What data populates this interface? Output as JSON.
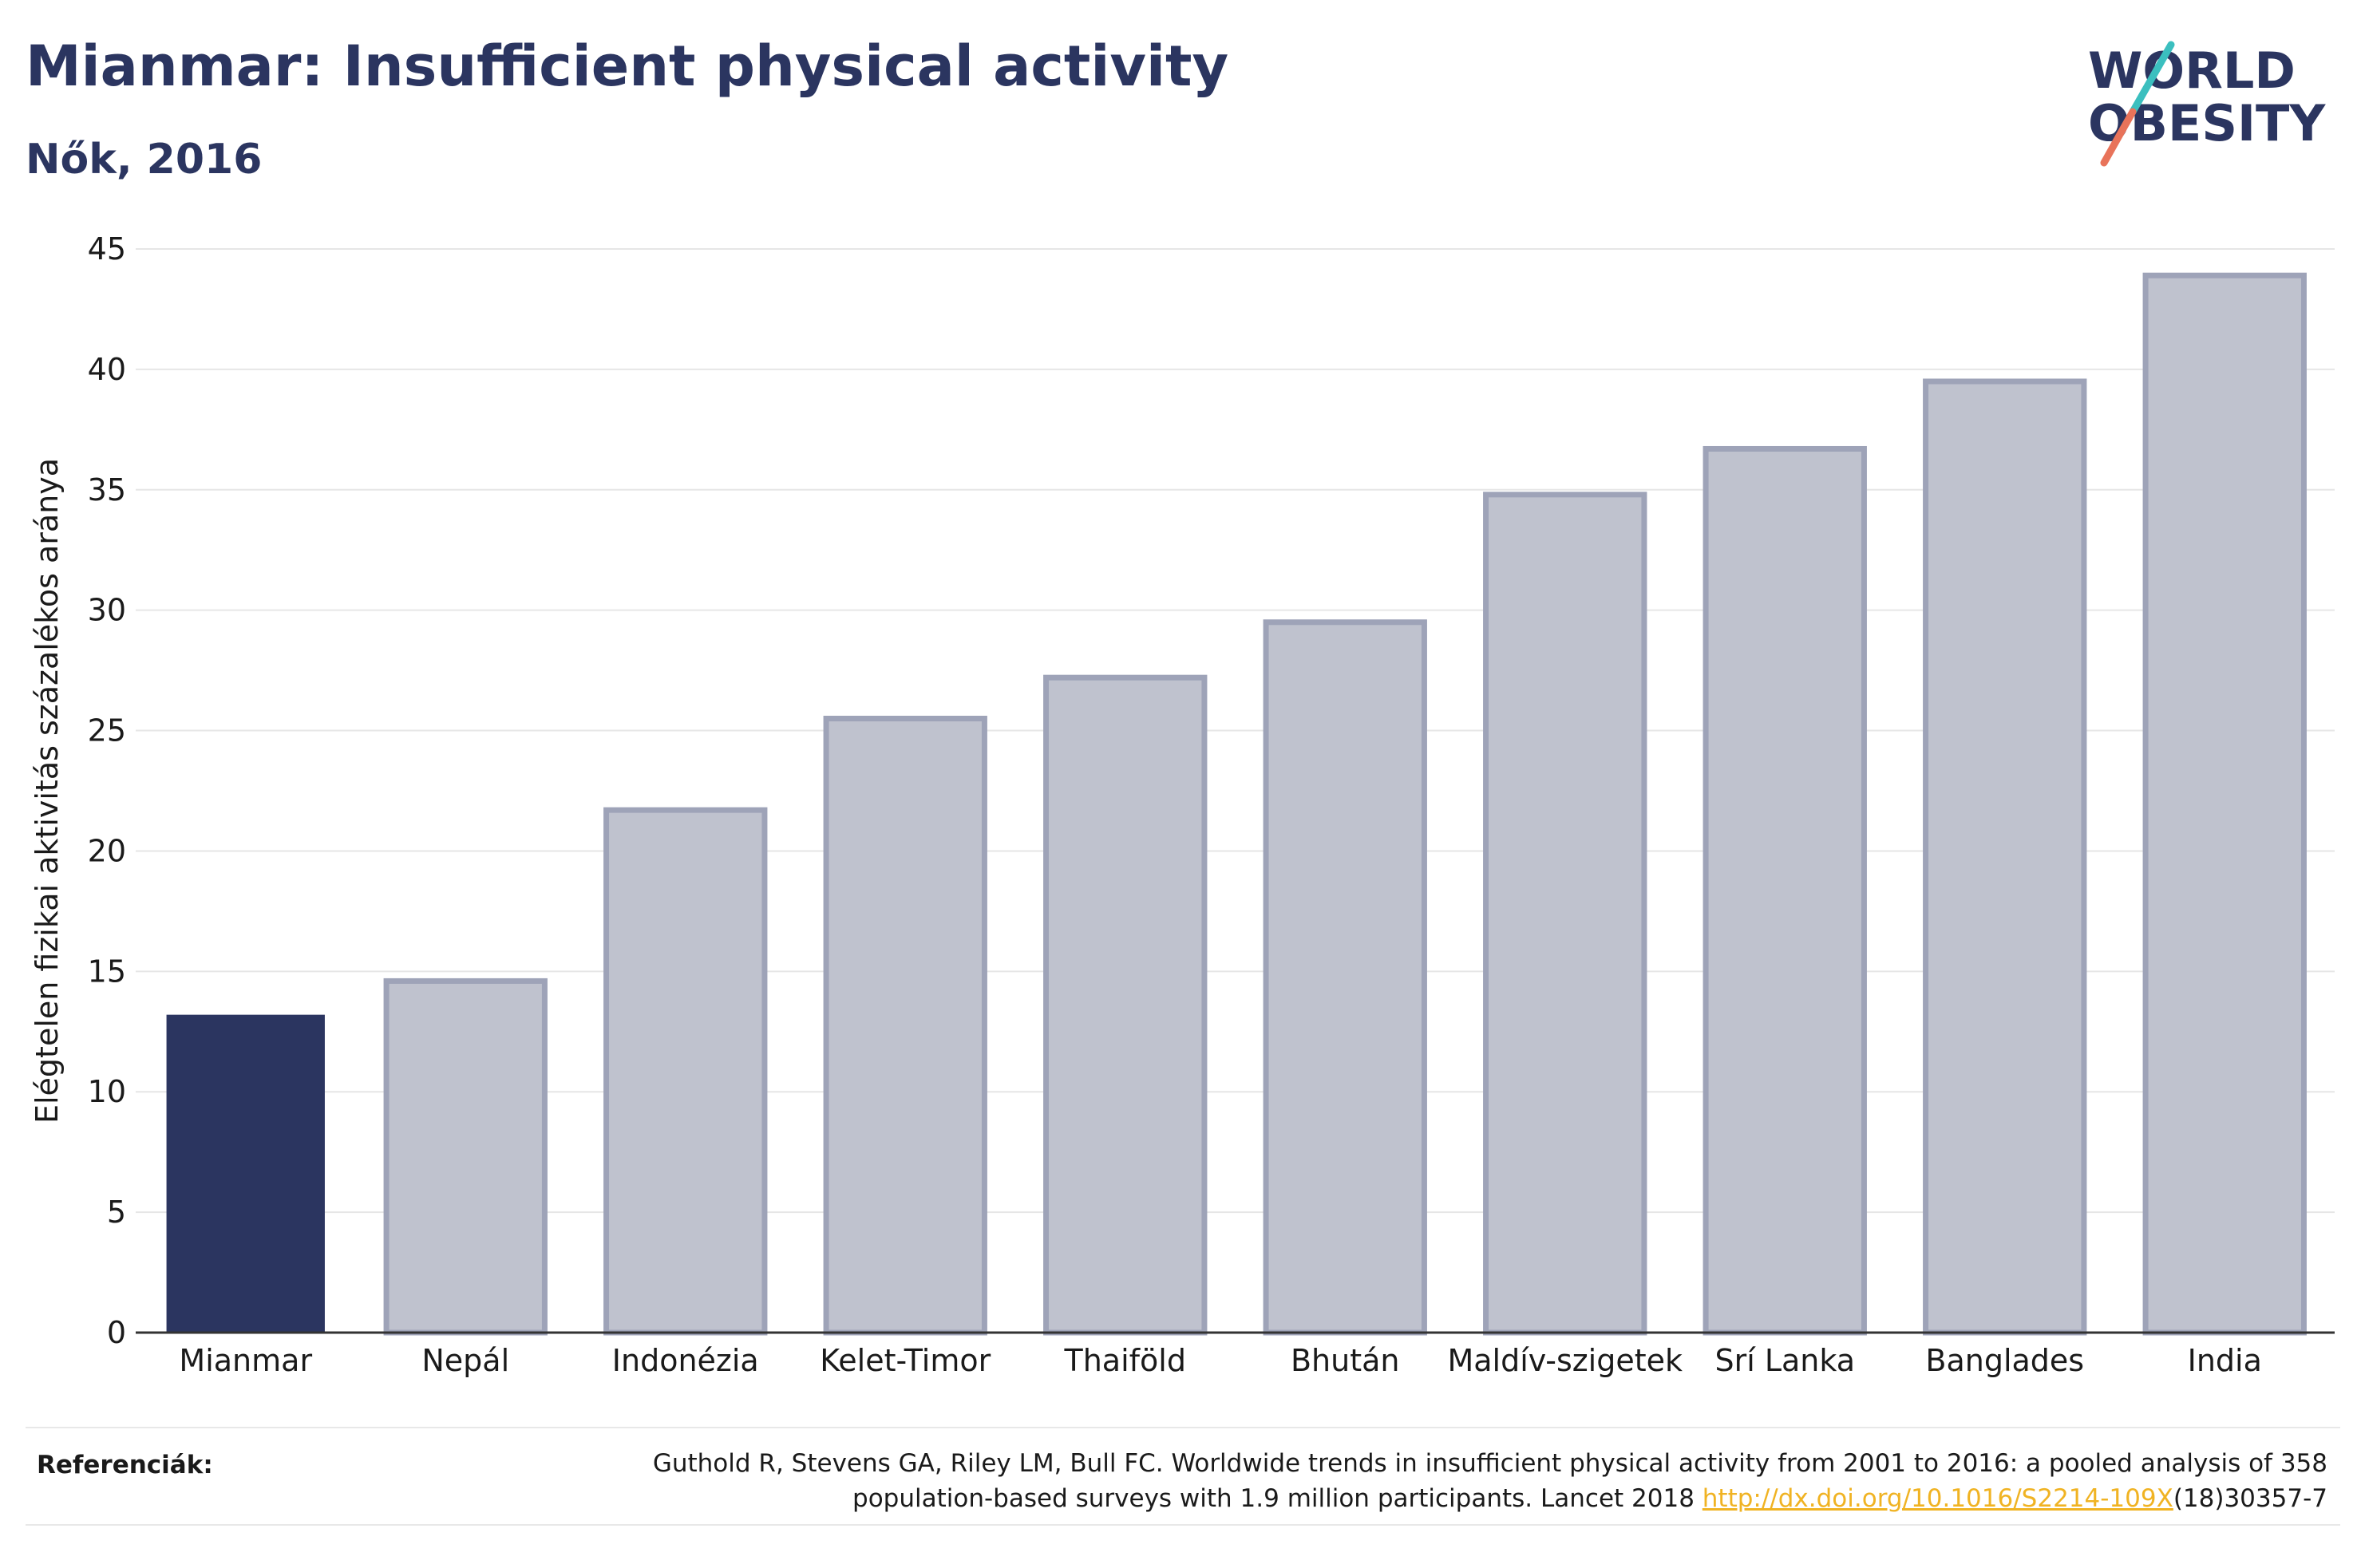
{
  "header": {
    "title": "Mianmar: Insufficient physical activity",
    "subtitle": "Nők, 2016"
  },
  "logo": {
    "line1": "WORLD",
    "line2": "OBESITY",
    "slash_color_1": "#3bbfbf",
    "slash_color_2": "#e8735a"
  },
  "chart_data": {
    "type": "bar",
    "title": "Mianmar: Insufficient physical activity",
    "subtitle": "Nők, 2016",
    "xlabel": "",
    "ylabel": "Elégtelen fizikai aktivitás százalékos aránya",
    "ylim": [
      0,
      45
    ],
    "yticks": [
      0,
      5,
      10,
      15,
      20,
      25,
      30,
      35,
      40,
      45
    ],
    "grid": true,
    "categories": [
      "Mianmar",
      "Nepál",
      "Indonézia",
      "Kelet-Timor",
      "Thaiföld",
      "Bhután",
      "Maldív-szigetek",
      "Srí Lanka",
      "Banglades",
      "India"
    ],
    "values": [
      13.2,
      14.6,
      21.7,
      25.5,
      27.2,
      29.5,
      34.8,
      36.7,
      39.5,
      43.9
    ],
    "highlight_index": 0,
    "colors": {
      "highlight": "#2b3560",
      "other_fill": "#bfc2ce",
      "other_stroke": "#9ea3b8",
      "grid": "#e6e6e6",
      "axis": "#333333"
    }
  },
  "footer": {
    "ref_label": "Referenciák:",
    "ref_text_1": "Guthold R, Stevens GA, Riley LM, Bull FC. Worldwide trends in insufficient physical activity from 2001 to 2016: a pooled analysis of 358",
    "ref_text_2": "population-based surveys with 1.9 million participants. Lancet 2018 ",
    "ref_link": "http://dx.doi.org/10.1016/S2214-109X",
    "ref_text_3": "(18)30357-7",
    "link_color": "#f0b323"
  }
}
